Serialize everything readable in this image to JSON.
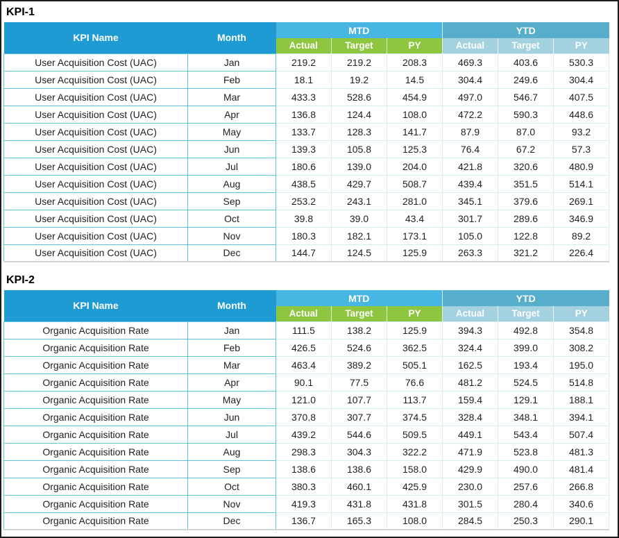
{
  "page": {
    "background": "#ffffff"
  },
  "colors": {
    "frame_border": "#1b1b1b",
    "header_blue": "#1f9bd3",
    "mtd_band": "#47b6e3",
    "ytd_band": "#57aecb",
    "mtd_sub": "#8ec63f",
    "ytd_sub": "#a3d1e0",
    "header_text": "#ffffff",
    "data_text": "#1f1f1f",
    "strong_border": "#5ec4d7",
    "light_border": "#d7ecf3",
    "table_bottom_border": "#ced3d6"
  },
  "columns": {
    "kpi_name_label": "KPI Name",
    "month_label": "Month",
    "groups": [
      {
        "label": "MTD",
        "sub": [
          "Actual",
          "Target",
          "PY"
        ]
      },
      {
        "label": "YTD",
        "sub": [
          "Actual",
          "Target",
          "PY"
        ]
      }
    ]
  },
  "tables": [
    {
      "title": "KPI-1",
      "kpi_name": "User Acquisition Cost (UAC)",
      "rows": [
        {
          "month": "Jan",
          "mtd": [
            "219.2",
            "219.2",
            "208.3"
          ],
          "ytd": [
            "469.3",
            "403.6",
            "530.3"
          ]
        },
        {
          "month": "Feb",
          "mtd": [
            "18.1",
            "19.2",
            "14.5"
          ],
          "ytd": [
            "304.4",
            "249.6",
            "304.4"
          ]
        },
        {
          "month": "Mar",
          "mtd": [
            "433.3",
            "528.6",
            "454.9"
          ],
          "ytd": [
            "497.0",
            "546.7",
            "407.5"
          ]
        },
        {
          "month": "Apr",
          "mtd": [
            "136.8",
            "124.4",
            "108.0"
          ],
          "ytd": [
            "472.2",
            "590.3",
            "448.6"
          ]
        },
        {
          "month": "May",
          "mtd": [
            "133.7",
            "128.3",
            "141.7"
          ],
          "ytd": [
            "87.9",
            "87.0",
            "93.2"
          ]
        },
        {
          "month": "Jun",
          "mtd": [
            "139.3",
            "105.8",
            "125.3"
          ],
          "ytd": [
            "76.4",
            "67.2",
            "57.3"
          ]
        },
        {
          "month": "Jul",
          "mtd": [
            "180.6",
            "139.0",
            "204.0"
          ],
          "ytd": [
            "421.8",
            "320.6",
            "480.9"
          ]
        },
        {
          "month": "Aug",
          "mtd": [
            "438.5",
            "429.7",
            "508.7"
          ],
          "ytd": [
            "439.4",
            "351.5",
            "514.1"
          ]
        },
        {
          "month": "Sep",
          "mtd": [
            "253.2",
            "243.1",
            "281.0"
          ],
          "ytd": [
            "345.1",
            "379.6",
            "269.1"
          ]
        },
        {
          "month": "Oct",
          "mtd": [
            "39.8",
            "39.0",
            "43.4"
          ],
          "ytd": [
            "301.7",
            "289.6",
            "346.9"
          ]
        },
        {
          "month": "Nov",
          "mtd": [
            "180.3",
            "182.1",
            "173.1"
          ],
          "ytd": [
            "105.0",
            "122.8",
            "89.2"
          ]
        },
        {
          "month": "Dec",
          "mtd": [
            "144.7",
            "124.5",
            "125.9"
          ],
          "ytd": [
            "263.3",
            "321.2",
            "226.4"
          ]
        }
      ]
    },
    {
      "title": "KPI-2",
      "kpi_name": "Organic Acquisition Rate",
      "rows": [
        {
          "month": "Jan",
          "mtd": [
            "111.5",
            "138.2",
            "125.9"
          ],
          "ytd": [
            "394.3",
            "492.8",
            "354.8"
          ]
        },
        {
          "month": "Feb",
          "mtd": [
            "426.5",
            "524.6",
            "362.5"
          ],
          "ytd": [
            "324.4",
            "399.0",
            "308.2"
          ]
        },
        {
          "month": "Mar",
          "mtd": [
            "463.4",
            "389.2",
            "505.1"
          ],
          "ytd": [
            "162.5",
            "193.4",
            "195.0"
          ]
        },
        {
          "month": "Apr",
          "mtd": [
            "90.1",
            "77.5",
            "76.6"
          ],
          "ytd": [
            "481.2",
            "524.5",
            "514.8"
          ]
        },
        {
          "month": "May",
          "mtd": [
            "121.0",
            "107.7",
            "113.7"
          ],
          "ytd": [
            "159.4",
            "129.1",
            "188.1"
          ]
        },
        {
          "month": "Jun",
          "mtd": [
            "370.8",
            "307.7",
            "374.5"
          ],
          "ytd": [
            "328.4",
            "348.1",
            "394.1"
          ]
        },
        {
          "month": "Jul",
          "mtd": [
            "439.2",
            "544.6",
            "509.5"
          ],
          "ytd": [
            "449.1",
            "543.4",
            "507.4"
          ]
        },
        {
          "month": "Aug",
          "mtd": [
            "298.3",
            "304.3",
            "322.2"
          ],
          "ytd": [
            "471.9",
            "523.8",
            "481.3"
          ]
        },
        {
          "month": "Sep",
          "mtd": [
            "138.6",
            "138.6",
            "158.0"
          ],
          "ytd": [
            "429.9",
            "490.0",
            "481.4"
          ]
        },
        {
          "month": "Oct",
          "mtd": [
            "380.3",
            "460.1",
            "425.9"
          ],
          "ytd": [
            "230.0",
            "257.6",
            "266.8"
          ]
        },
        {
          "month": "Nov",
          "mtd": [
            "419.3",
            "431.8",
            "431.8"
          ],
          "ytd": [
            "301.5",
            "280.4",
            "340.6"
          ]
        },
        {
          "month": "Dec",
          "mtd": [
            "136.7",
            "165.3",
            "108.0"
          ],
          "ytd": [
            "284.5",
            "250.3",
            "290.1"
          ]
        }
      ]
    }
  ]
}
